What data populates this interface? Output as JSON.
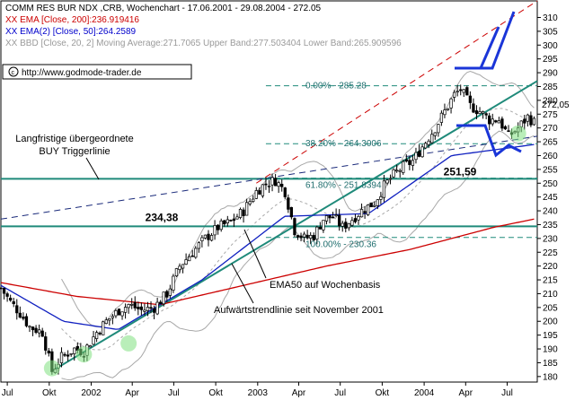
{
  "chart_data": {
    "type": "candlestick",
    "title": "COMM RES BUR NDX ,CRB, Wochenchart - 17.06.2001 - 29.08.2004 - 272.05",
    "legend": [
      {
        "text": "XX EMA [Close, 200]:236.919416",
        "color": "#cc0000"
      },
      {
        "text": "XX EMA(2) [Close, 50]:264.2589",
        "color": "#0000cc"
      },
      {
        "text": "XX BBD [Close, 20, 2] Moving Average:271.7065  Upper Band:277.503404  Lower Band:265.909596",
        "color": "#9a9a9a"
      }
    ],
    "source": "http://www.godmode-trader.de",
    "last_price_label": "272,05",
    "y_axis": {
      "min": 178,
      "max": 316,
      "ticks": [
        180,
        185,
        190,
        195,
        200,
        205,
        210,
        215,
        220,
        225,
        230,
        235,
        240,
        245,
        250,
        255,
        260,
        265,
        270,
        275,
        280,
        285,
        290,
        295,
        300,
        305,
        310
      ]
    },
    "x_axis": {
      "start": "2001-06-17",
      "end": "2004-09-05",
      "ticks": [
        {
          "label": "Jul",
          "date": "2001-07-01"
        },
        {
          "label": "Okt",
          "date": "2001-10-01"
        },
        {
          "label": "2002",
          "date": "2002-01-01"
        },
        {
          "label": "Apr",
          "date": "2002-04-01"
        },
        {
          "label": "Jul",
          "date": "2002-07-01"
        },
        {
          "label": "Okt",
          "date": "2002-10-01"
        },
        {
          "label": "2003",
          "date": "2003-01-01"
        },
        {
          "label": "Apr",
          "date": "2003-04-01"
        },
        {
          "label": "Jul",
          "date": "2003-07-01"
        },
        {
          "label": "Okt",
          "date": "2003-10-01"
        },
        {
          "label": "2004",
          "date": "2004-01-01"
        },
        {
          "label": "Apr",
          "date": "2004-04-01"
        },
        {
          "label": "Jul",
          "date": "2004-07-01"
        }
      ]
    },
    "price_path": [
      [
        "2001-06-17",
        212
      ],
      [
        "2001-07-08",
        207
      ],
      [
        "2001-07-29",
        203
      ],
      [
        "2001-08-19",
        198
      ],
      [
        "2001-09-16",
        196
      ],
      [
        "2001-10-07",
        182
      ],
      [
        "2001-10-28",
        187
      ],
      [
        "2001-11-25",
        190
      ],
      [
        "2001-12-16",
        189
      ],
      [
        "2002-01-13",
        196
      ],
      [
        "2002-02-03",
        200
      ],
      [
        "2002-03-03",
        204
      ],
      [
        "2002-03-24",
        206
      ],
      [
        "2002-04-21",
        204
      ],
      [
        "2002-05-19",
        205
      ],
      [
        "2002-06-16",
        210
      ],
      [
        "2002-07-14",
        220
      ],
      [
        "2002-08-11",
        225
      ],
      [
        "2002-09-08",
        230
      ],
      [
        "2002-10-06",
        234
      ],
      [
        "2002-11-03",
        236
      ],
      [
        "2002-12-01",
        240
      ],
      [
        "2002-12-29",
        247
      ],
      [
        "2003-01-19",
        250
      ],
      [
        "2003-02-09",
        251
      ],
      [
        "2003-03-02",
        247
      ],
      [
        "2003-03-23",
        233
      ],
      [
        "2003-04-13",
        230
      ],
      [
        "2003-05-04",
        231
      ],
      [
        "2003-05-25",
        237
      ],
      [
        "2003-06-15",
        238
      ],
      [
        "2003-07-06",
        234
      ],
      [
        "2003-07-27",
        237
      ],
      [
        "2003-08-17",
        240
      ],
      [
        "2003-09-14",
        243
      ],
      [
        "2003-10-05",
        249
      ],
      [
        "2003-10-26",
        253
      ],
      [
        "2003-11-16",
        256
      ],
      [
        "2003-12-07",
        258
      ],
      [
        "2004-01-04",
        265
      ],
      [
        "2004-01-25",
        270
      ],
      [
        "2004-02-15",
        276
      ],
      [
        "2004-03-07",
        282
      ],
      [
        "2004-03-21",
        284
      ],
      [
        "2004-04-11",
        278
      ],
      [
        "2004-05-02",
        276
      ],
      [
        "2004-05-23",
        273
      ],
      [
        "2004-06-13",
        273
      ],
      [
        "2004-07-04",
        267
      ],
      [
        "2004-07-25",
        270
      ],
      [
        "2004-08-15",
        274
      ],
      [
        "2004-08-29",
        272
      ]
    ],
    "ema200": [
      [
        "2001-06-17",
        214
      ],
      [
        "2001-12-01",
        209
      ],
      [
        "2002-06-01",
        206
      ],
      [
        "2002-12-01",
        213
      ],
      [
        "2003-06-01",
        220
      ],
      [
        "2003-12-01",
        226
      ],
      [
        "2004-06-01",
        234
      ],
      [
        "2004-08-29",
        237
      ]
    ],
    "ema50": [
      [
        "2001-06-17",
        213
      ],
      [
        "2001-11-01",
        200
      ],
      [
        "2002-03-01",
        197
      ],
      [
        "2002-09-01",
        215
      ],
      [
        "2003-03-01",
        238
      ],
      [
        "2003-09-01",
        239
      ],
      [
        "2004-03-01",
        260
      ],
      [
        "2004-08-29",
        264
      ]
    ],
    "horizontal_levels": [
      {
        "value": 234.38,
        "label": "234,38"
      },
      {
        "value": 251.59,
        "label": "251,59"
      }
    ],
    "fibonacci": [
      {
        "value": 285.28,
        "label": "0.00% - 285.28"
      },
      {
        "value": 264.3006,
        "label": "38.20% - 264.3006"
      },
      {
        "value": 251.8394,
        "label": "61.80% - 251.8394"
      },
      {
        "value": 230.36,
        "label": "100.00% - 230.36"
      }
    ],
    "trendlines": [
      {
        "name": "uptrend",
        "from": [
          "2001-10-07",
          182
        ],
        "to": [
          "2004-09-05",
          287
        ],
        "color": "#1f8a7a"
      },
      {
        "name": "long-term",
        "from": [
          "2001-06-17",
          237
        ],
        "to": [
          "2004-09-05",
          267
        ],
        "color": "#1a2a7a"
      },
      {
        "name": "channel-top",
        "from": [
          "2002-12-29",
          250
        ],
        "to": [
          "2004-09-05",
          316
        ],
        "color": "#cc0000"
      }
    ],
    "annotations": [
      {
        "lines": [
          "Langfristige übergeordnete",
          "BUY Triggerlinie"
        ]
      },
      {
        "lines": [
          "EMA50 auf Wochenbasis"
        ]
      },
      {
        "lines": [
          "Aufwärtstrendlinie seit November 2001"
        ]
      }
    ]
  }
}
